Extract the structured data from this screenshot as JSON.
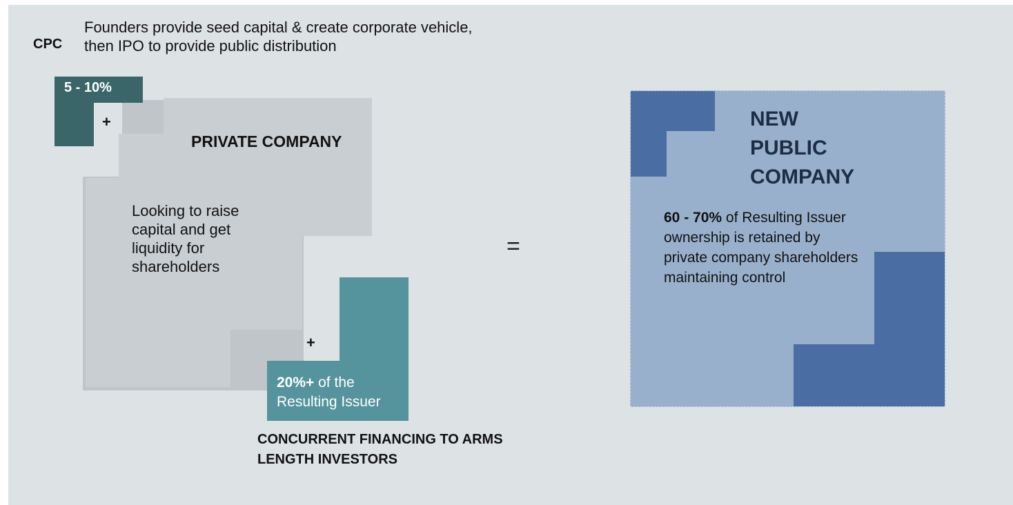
{
  "header": {
    "cpc_label": "CPC",
    "cpc_description": "Founders provide seed capital & create corporate vehicle, then IPO to provide public distribution"
  },
  "cpc_block": {
    "percent": "5 - 10%",
    "plus": "+"
  },
  "private_company": {
    "title": "PRIVATE COMPANY",
    "description": "Looking to raise capital and get liquidity for shareholders"
  },
  "financing": {
    "plus": "+",
    "percent_bold": "20%+",
    "percent_text": " of the Resulting Issuer",
    "caption": "CONCURRENT FINANCING TO ARMS LENGTH INVESTORS"
  },
  "equals": "=",
  "new_public_company": {
    "title_line1": "NEW",
    "title_line2": "PUBLIC",
    "title_line3": "COMPANY",
    "percent_bold": "60 - 70%",
    "description": " of Resulting Issuer ownership is retained by private company shareholders maintaining control"
  },
  "colors": {
    "background": "#dde2e5",
    "cpc_teal": "#3a6669",
    "private_grey": "#c9ced2",
    "financing_teal": "#55949c",
    "public_light": "#99b0cc",
    "public_dark": "#4a6da3"
  }
}
